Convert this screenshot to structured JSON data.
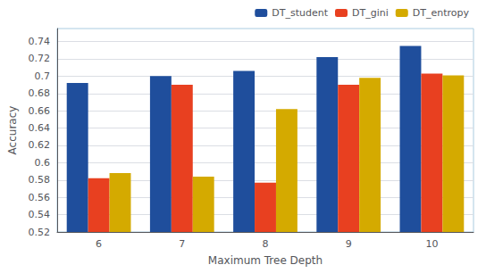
{
  "chart_data": {
    "type": "bar",
    "xlabel": "Maximum Tree Depth",
    "ylabel": "Accuracy",
    "categories": [
      "6",
      "7",
      "8",
      "9",
      "10"
    ],
    "series": [
      {
        "name": "DT_student",
        "color": "#1F4E9C",
        "values": [
          0.692,
          0.7,
          0.706,
          0.722,
          0.735
        ]
      },
      {
        "name": "DT_gini",
        "color": "#E84020",
        "values": [
          0.582,
          0.69,
          0.577,
          0.69,
          0.703
        ]
      },
      {
        "name": "DT_entropy",
        "color": "#D4AA00",
        "values": [
          0.588,
          0.584,
          0.662,
          0.698,
          0.701
        ]
      }
    ],
    "ylim": [
      0.52,
      0.755
    ],
    "yticks": [
      0.52,
      0.54,
      0.56,
      0.58,
      0.6,
      0.62,
      0.64,
      0.66,
      0.68,
      0.7,
      0.72,
      0.74
    ],
    "grid": true,
    "legend": "upper right"
  }
}
